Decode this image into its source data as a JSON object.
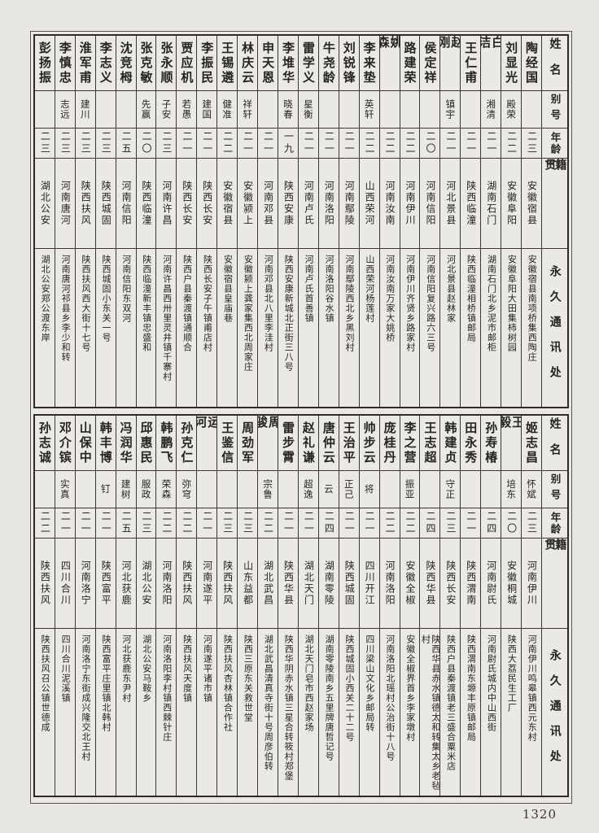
{
  "page_number": "1320",
  "headers": {
    "name": "姓名",
    "alias": "别号",
    "age": "年龄",
    "origin": "籍贯",
    "address": "永久通讯处"
  },
  "tables": [
    {
      "entries": [
        {
          "name": "陶经国",
          "alias": "",
          "age": "二三",
          "origin": "安徽宿县",
          "address": "安徽宿县南项桥集西陶庄"
        },
        {
          "name": "刘显光",
          "alias": "殿荣",
          "age": "二二",
          "origin": "安徽阜阳",
          "address": "安徽阜阳大田集柿树园"
        },
        {
          "name": "白洁",
          "alias": "湘清",
          "age": "二一",
          "origin": "湖南石门",
          "address": "湖南石门北乡泥市邮柜"
        },
        {
          "name": "王仁甫",
          "alias": "",
          "age": "二一",
          "origin": "陕西临潼",
          "address": "陕西临潼相桥镇邮局"
        },
        {
          "name": "赵刚",
          "alias": "镇宇",
          "age": "二一",
          "origin": "河北景县",
          "address": "河北景县赵林家"
        },
        {
          "name": "侯定祥",
          "alias": "",
          "age": "二〇",
          "origin": "河南信阳",
          "address": "河南信阳复兴路六三号"
        },
        {
          "name": "路建荣",
          "alias": "",
          "age": "二二",
          "origin": "河南伊川",
          "address": "河南伊川齐贤乡路家村"
        },
        {
          "name": "姚森",
          "alias": "",
          "age": "二二",
          "origin": "河南汝南",
          "address": "河南汝南万家大姚桥"
        },
        {
          "name": "李来垫",
          "alias": "英轩",
          "age": "二二",
          "origin": "山西荣河",
          "address": "山西荣河杨莲村"
        },
        {
          "name": "刘锐锋",
          "alias": "",
          "age": "二一",
          "origin": "河南鄢陵",
          "address": "河南鄢陵西北乡黑刘村"
        },
        {
          "name": "牛尧龄",
          "alias": "",
          "age": "二一",
          "origin": "河南洛阳",
          "address": "河南洛阳谷水镇"
        },
        {
          "name": "雷学义",
          "alias": "星衡",
          "age": "二一",
          "origin": "河南卢氏",
          "address": "河南卢氏首善镇"
        },
        {
          "name": "李堆华",
          "alias": "晓春",
          "age": "一九",
          "origin": "陕西安康",
          "address": "陕西安康新城北正街三八号"
        },
        {
          "name": "申天恩",
          "alias": "",
          "age": "二一",
          "origin": "河南邓县",
          "address": "河南邓县北八里李洼村"
        },
        {
          "name": "林庆云",
          "alias": "祥轩",
          "age": "二一",
          "origin": "安徽颍上",
          "address": "安徽颍上龚家集西北周家庄"
        },
        {
          "name": "王锡遴",
          "alias": "健准",
          "age": "二二",
          "origin": "安徽宿县",
          "address": "安徽宿县皇庙巷"
        },
        {
          "name": "李振民",
          "alias": "建国",
          "age": "二一",
          "origin": "陕西长安",
          "address": "陕西长安子午镇甫店村"
        },
        {
          "name": "贾应机",
          "alias": "若愚",
          "age": "二一",
          "origin": "陕西长安",
          "address": "陕西户县秦渡镇通顺合"
        },
        {
          "name": "张永顺",
          "alias": "子安",
          "age": "二三",
          "origin": "河南许昌",
          "address": "河南许昌西卅里灵井镇千寨村"
        },
        {
          "name": "张克敏",
          "alias": "先赢",
          "age": "二〇",
          "origin": "陕西临潼",
          "address": "陕西临潼新丰镇忠盛和"
        },
        {
          "name": "沈竞栂",
          "alias": "",
          "age": "二五",
          "origin": "河南信阳",
          "address": "河南信阳东双河"
        },
        {
          "name": "李志义",
          "alias": "",
          "age": "二三",
          "origin": "陕西城固",
          "address": "陕西城固小东关一号"
        },
        {
          "name": "淮军甫",
          "alias": "建川",
          "age": "二三",
          "origin": "陕西扶风",
          "address": "陕西扶风西大街十七号"
        },
        {
          "name": "李慎忠",
          "alias": "志远",
          "age": "二三",
          "origin": "河南唐河",
          "address": "河南唐河祁县乡李少和转"
        },
        {
          "name": "彭扬振",
          "alias": "",
          "age": "二三",
          "origin": "湖北公安",
          "address": "湖北公安郑公渡东岸"
        }
      ]
    },
    {
      "entries": [
        {
          "name": "姬志昌",
          "alias": "怀斌",
          "age": "二三",
          "origin": "河南伊川",
          "address": "河南伊川鸣皋镇西元东村"
        },
        {
          "name": "王毅",
          "alias": "培东",
          "age": "二〇",
          "origin": "安徽桐城",
          "address": "陕西大荔民生工厂"
        },
        {
          "name": "孙寿椿",
          "alias": "",
          "age": "二四",
          "origin": "河南尉氏",
          "address": "河南尉氏城内中山西街"
        },
        {
          "name": "田永秀",
          "alias": "",
          "age": "二一",
          "origin": "陕西渭南",
          "address": "陕西渭南东塬丰原镇邮局"
        },
        {
          "name": "韩建贞",
          "alias": "守正",
          "age": "二三",
          "origin": "陕西长安",
          "address": "陕西户县秦渡镇老三盛合粟米店"
        },
        {
          "name": "王志超",
          "alias": "",
          "age": "二四",
          "origin": "陕西华县",
          "address": "陕西华县赤水镇德太和转集太乡老毡村"
        },
        {
          "name": "李之营",
          "alias": "振亚",
          "age": "二二",
          "origin": "安徽全椒",
          "address": "安徽全椒界首乡李家墩村"
        },
        {
          "name": "庞桂丹",
          "alias": "",
          "age": "二二",
          "origin": "河南洛阳",
          "address": "河南洛阳北瑶村公治街十八号"
        },
        {
          "name": "帅步云",
          "alias": "将",
          "age": "二一",
          "origin": "四川开江",
          "address": "四川梁山文化乡邮局转"
        },
        {
          "name": "王治平",
          "alias": "正己",
          "age": "二一",
          "origin": "陕西城固",
          "address": "陕西城固小西关二十二号"
        },
        {
          "name": "唐仲云",
          "alias": "云",
          "age": "二四",
          "origin": "湖南零陵",
          "address": "湖南零陵南乡五里牌唐哲记号"
        },
        {
          "name": "赵礼谦",
          "alias": "超逸",
          "age": "二一",
          "origin": "湖北天门",
          "address": "湖北天门皂市西赵家场"
        },
        {
          "name": "雷步霄",
          "alias": "",
          "age": "二一",
          "origin": "陕西华县",
          "address": "陕西华阴赤水镇三星合转筱村郑堡"
        },
        {
          "name": "周骏",
          "alias": "宗鲁",
          "age": "二二",
          "origin": "湖北武昌",
          "address": "湖北武昌清真寺街十号周彦伯转"
        },
        {
          "name": "周劲军",
          "alias": "",
          "age": "二三",
          "origin": "山东益都",
          "address": "陕西三原东关救世堂"
        },
        {
          "name": "王鉴信",
          "alias": "",
          "age": "二三",
          "origin": "陕西扶风",
          "address": "陕西扶风杏林镇合作社"
        },
        {
          "name": "运河",
          "alias": "",
          "age": "二一",
          "origin": "河南遂平",
          "address": "河南遂平诸市镇"
        },
        {
          "name": "孙克仁",
          "alias": "弥穹",
          "age": "二二",
          "origin": "陕西扶风",
          "address": "陕西扶风天度镇"
        },
        {
          "name": "韩鹏飞",
          "alias": "荣森",
          "age": "二二",
          "origin": "河南洛阳",
          "address": "河南洛阳李村镇西棘针庄"
        },
        {
          "name": "邱惠民",
          "alias": "服政",
          "age": "二三",
          "origin": "湖北公安",
          "address": "湖北公安马鞍乡"
        },
        {
          "name": "冯润华",
          "alias": "建树",
          "age": "二五",
          "origin": "河北获鹿",
          "address": "河北获鹿东尹村"
        },
        {
          "name": "韩丰博",
          "alias": "钉",
          "age": "二一",
          "origin": "陕西富平",
          "address": "陕西富平庄里镇北韩村"
        },
        {
          "name": "山保中",
          "alias": "",
          "age": "二一",
          "origin": "河南洛宁",
          "address": "河南洛宁东街成兴隆交北王村"
        },
        {
          "name": "邓介镔",
          "alias": "实真",
          "age": "二一",
          "origin": "四川合川",
          "address": "四川合川泥溪镇"
        },
        {
          "name": "孙志诚",
          "alias": "",
          "age": "二二",
          "origin": "陕西扶风",
          "address": "陕西扶风召公镇世德成"
        }
      ]
    }
  ]
}
